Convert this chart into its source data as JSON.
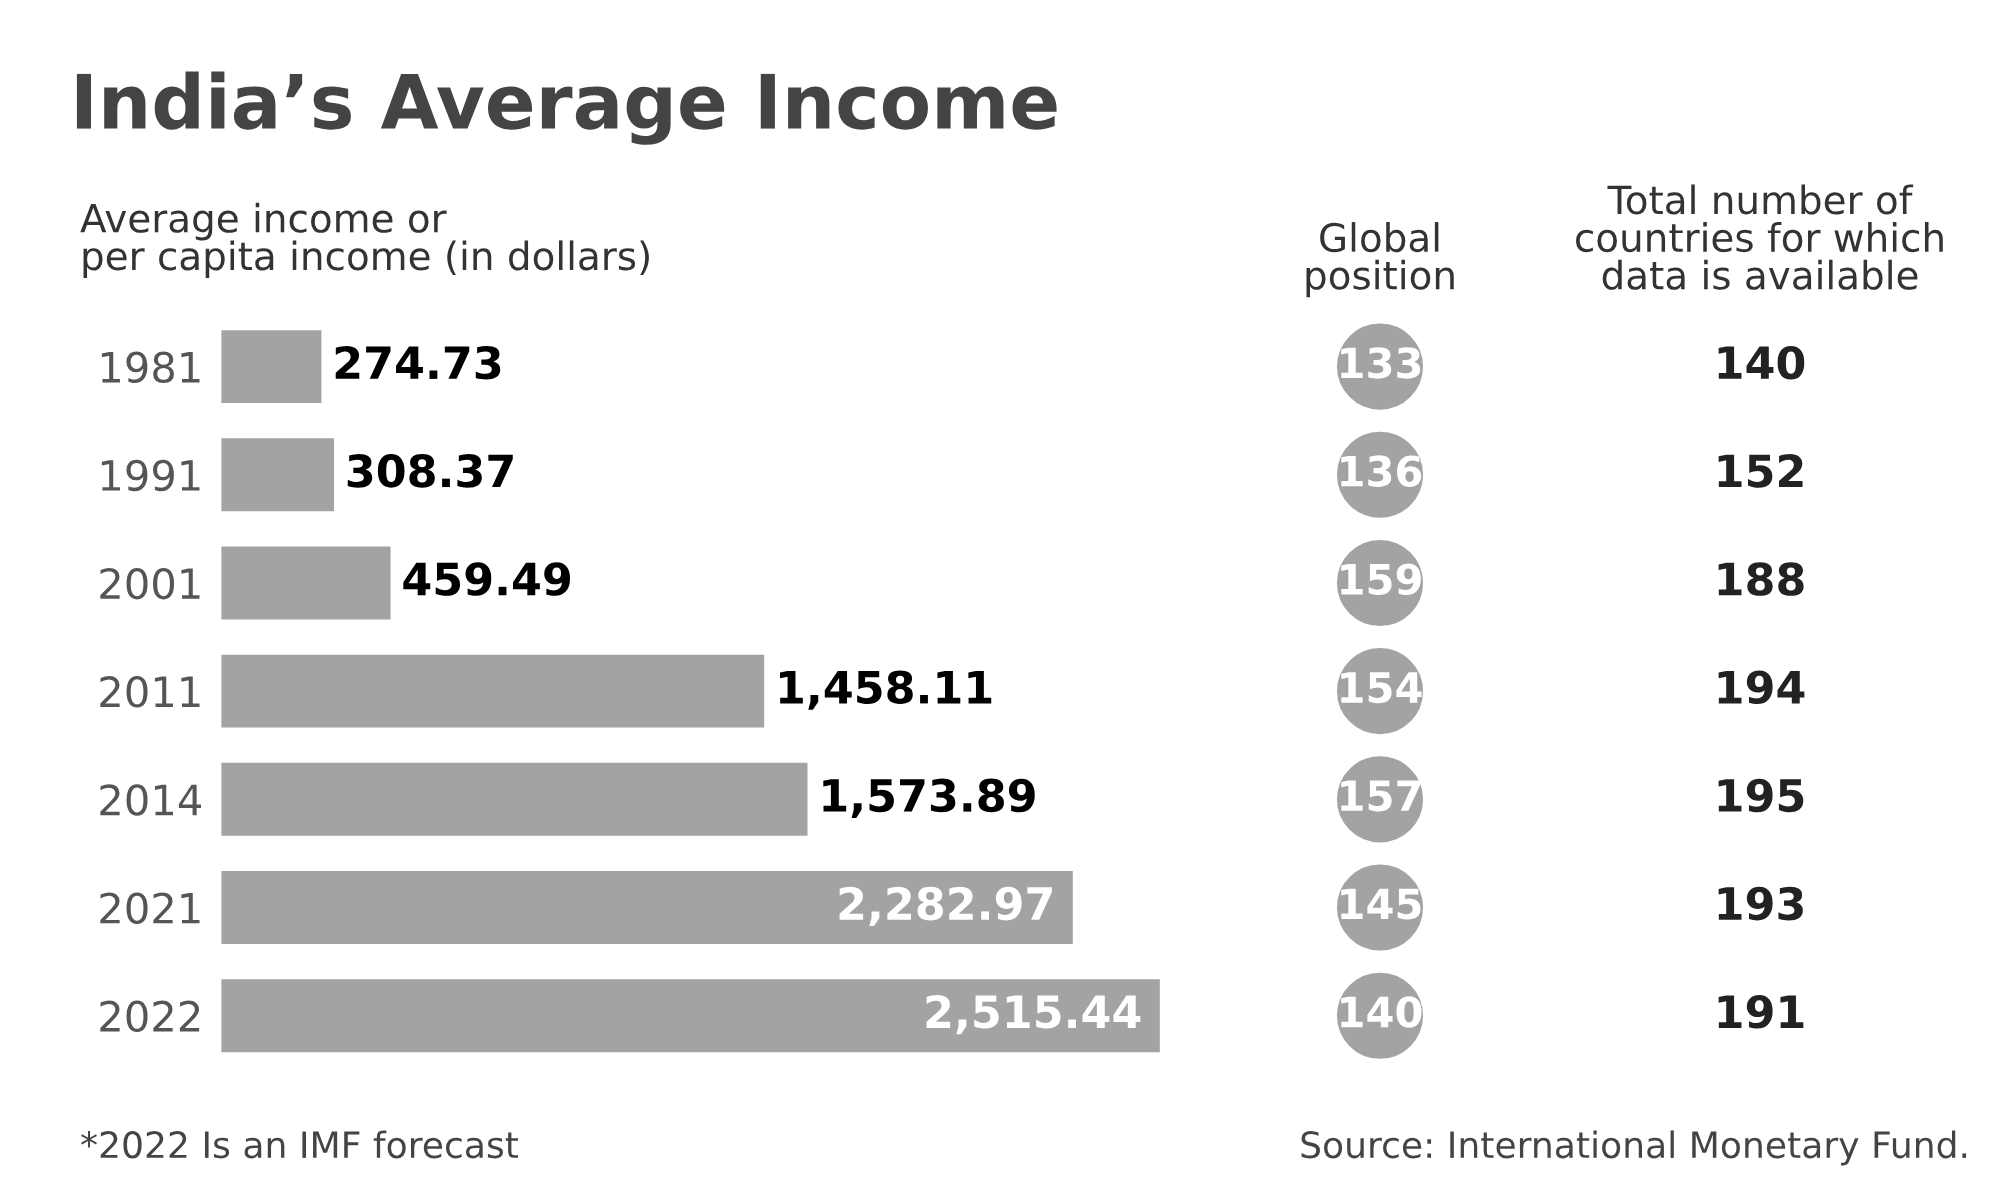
{
  "chart_data": [
    {
      "type": "bar",
      "orientation": "horizontal",
      "title": "India’s Average Income",
      "subtitle": "Average income or\nper capita income (in dollars)",
      "categories": [
        "1981",
        "1991",
        "2001",
        "2011",
        "2014",
        "2021",
        "2022"
      ],
      "values": [
        274.73,
        308.37,
        459.49,
        1458.11,
        1573.89,
        2282.97,
        2515.44
      ],
      "value_labels": [
        "274.73",
        "308.37",
        "459.49",
        "1,458.11",
        "1,573.89",
        "2,282.97",
        "2,515.44"
      ],
      "color": "#a3a3a3",
      "grid": false,
      "annotations": [
        "*2022 Is an IMF forecast",
        "Source: International Monetary Fund."
      ]
    },
    {
      "type": "other",
      "title": "Global\nposition",
      "categories": [
        null,
        null,
        null,
        null,
        null,
        null,
        null
      ],
      "values": [
        133,
        136,
        159,
        154,
        157,
        145,
        140
      ],
      "value_labels": [
        "133",
        "136",
        "159",
        "154",
        "157",
        "145",
        "140"
      ],
      "color": "#a3a3a3"
    },
    {
      "type": "other",
      "title": "Total number of\ncountries for which\ndata is available",
      "categories": [
        null,
        null,
        null,
        null,
        null,
        null,
        null
      ],
      "values": [
        140,
        152,
        188,
        194,
        195,
        193,
        191
      ],
      "value_labels": [
        "140",
        "152",
        "188",
        "194",
        "195",
        "193",
        "191"
      ]
    }
  ]
}
